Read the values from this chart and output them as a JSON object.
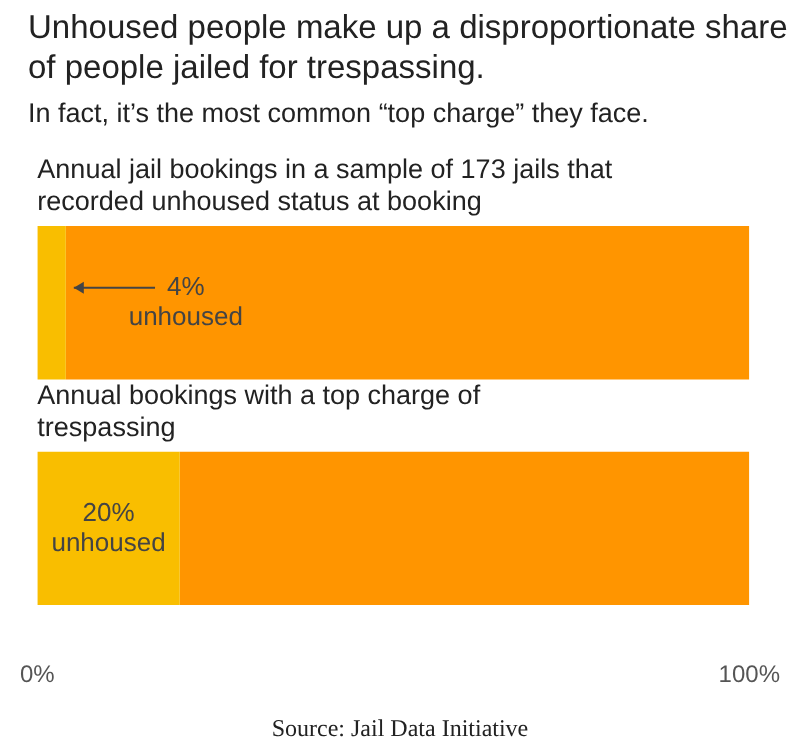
{
  "chart_data": {
    "type": "bar",
    "orientation": "horizontal",
    "stacked": true,
    "title": "Unhoused people make up a disproportionate share of people jailed for trespassing.",
    "subtitle": "In fact, it’s the most common “top charge” they face.",
    "categories": [
      "Annual jail bookings in a sample of 173 jails that recorded unhoused status at booking",
      "Annual bookings with a top charge of trespassing"
    ],
    "xlim": [
      0,
      100
    ],
    "xticks": [
      {
        "value": 0,
        "label": "0%"
      },
      {
        "value": 100,
        "label": "100%"
      }
    ],
    "grid": false,
    "legend": false,
    "series": [
      {
        "color": "#f9be00",
        "values": [
          4,
          20
        ],
        "value_labels": [
          "4% unhoused",
          "20% unhoused"
        ]
      },
      {
        "color": "#ff9500",
        "values": [
          96,
          80
        ]
      }
    ],
    "annotations": [
      "Source: Jail Data Initiative"
    ]
  }
}
